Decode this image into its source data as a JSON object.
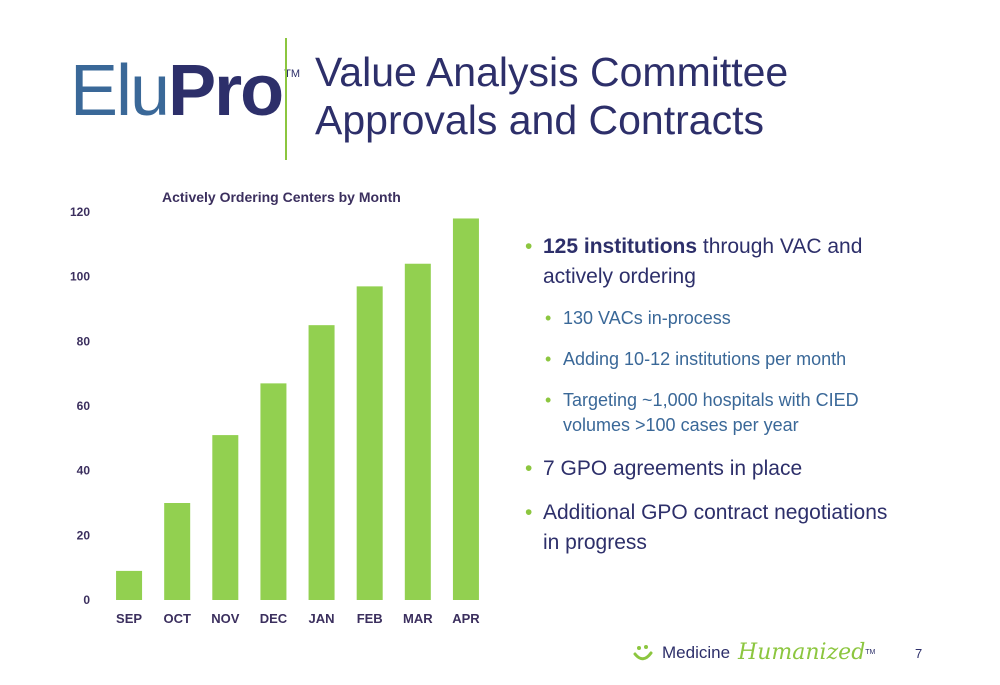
{
  "logo": {
    "part1": "Elu",
    "part2": "Pro",
    "tm": "TM"
  },
  "title": {
    "line1": "Value Analysis Committee",
    "line2": "Approvals and Contracts"
  },
  "chart_data": {
    "type": "bar",
    "title": "Actively Ordering Centers by Month",
    "categories": [
      "SEP",
      "OCT",
      "NOV",
      "DEC",
      "JAN",
      "FEB",
      "MAR",
      "APR"
    ],
    "values": [
      9,
      30,
      51,
      67,
      85,
      97,
      104,
      118
    ],
    "yticks": [
      0,
      20,
      40,
      60,
      80,
      100,
      120
    ],
    "ylim": [
      0,
      120
    ],
    "xlabel": "",
    "ylabel": "",
    "grid": false,
    "bar_color": "#92d050",
    "label_color": "#3b2f5e"
  },
  "bullets": {
    "b1_bold": "125 institutions",
    "b1_rest": " through VAC and actively ordering",
    "sub1": "130 VACs in-process",
    "sub2": "Adding 10-12 institutions per month",
    "sub3": "Targeting ~1,000 hospitals with CIED volumes >100 cases per year",
    "b2": "7 GPO agreements in place",
    "b3": "Additional GPO contract negotiations in progress"
  },
  "footer": {
    "brand": "Medicine",
    "tagline": "Humanized",
    "tm": "TM"
  },
  "page_number": "7",
  "colors": {
    "accent_green": "#8cc63f",
    "navy": "#2d2f6a",
    "blue": "#3a6898"
  },
  "icons": {
    "footer_logo": "smile-icon"
  }
}
